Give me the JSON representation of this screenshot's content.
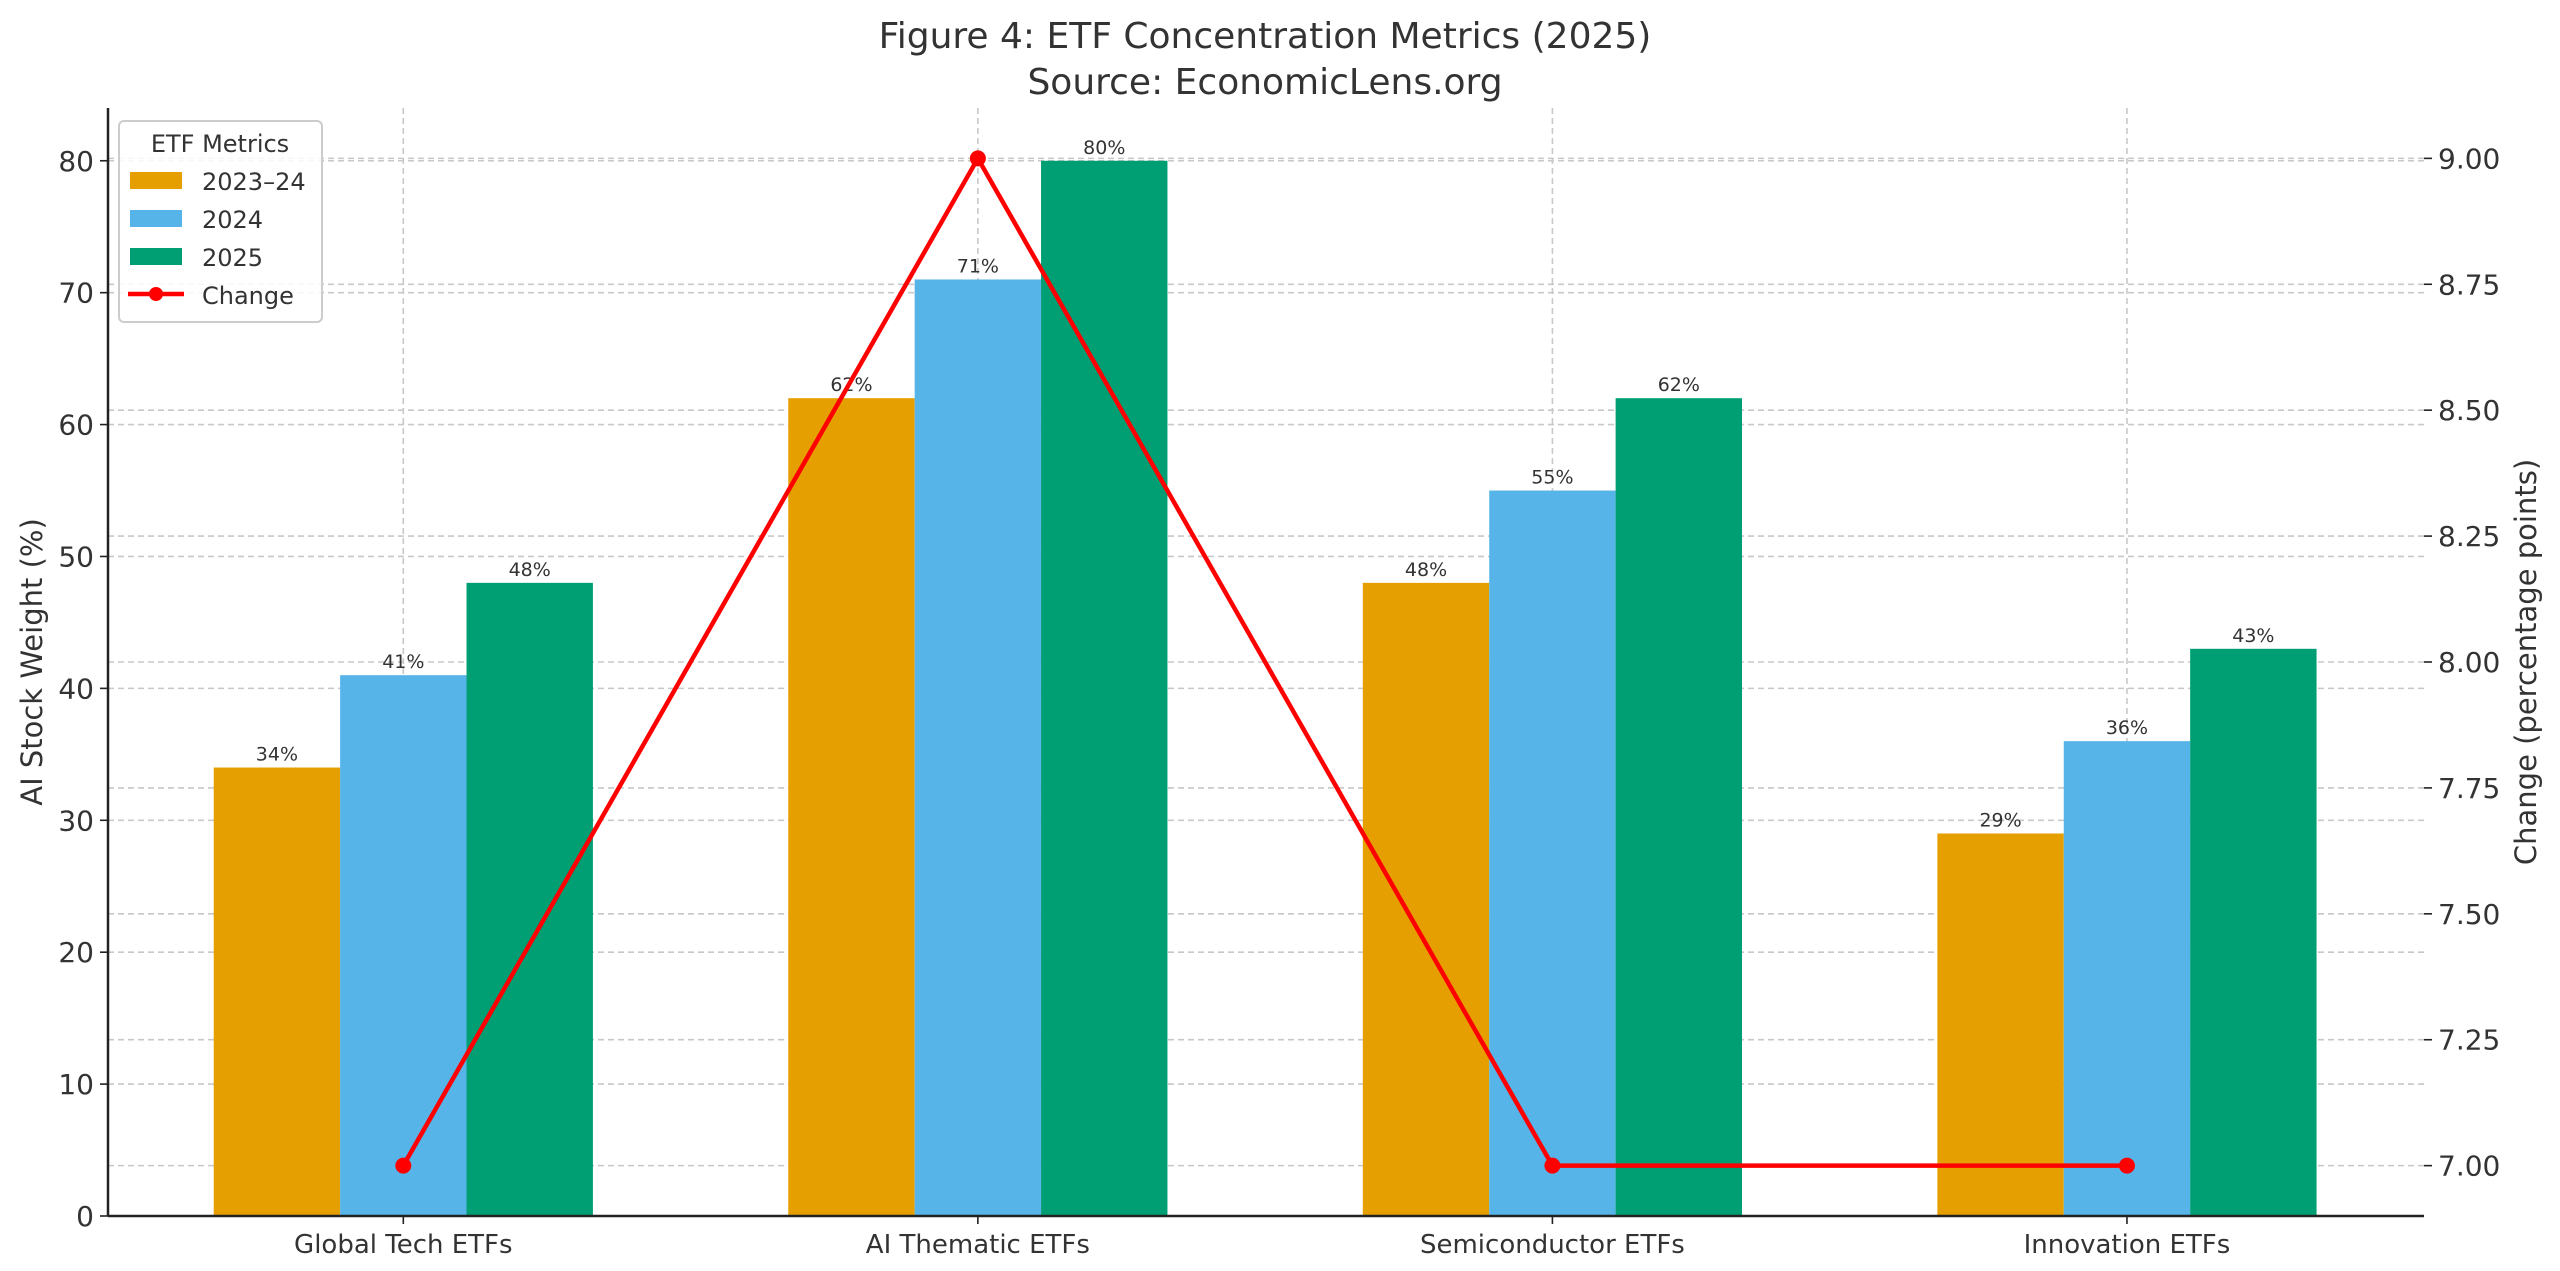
{
  "chart_data": {
    "type": "bar",
    "title": "Figure 4: ETF Concentration Metrics (2025)",
    "subtitle": "Source: EconomicLens.org",
    "xlabel": "",
    "ylabel": "AI Stock Weight (%)",
    "y2label": "Change (percentage points)",
    "categories": [
      "Global Tech ETFs",
      "AI Thematic ETFs",
      "Semiconductor ETFs",
      "Innovation ETFs"
    ],
    "series": [
      {
        "name": "2023–24",
        "type": "bar",
        "axis": "left",
        "color": "#E69F00",
        "values": [
          34,
          62,
          48,
          29
        ],
        "labels": [
          "34%",
          "62%",
          "48%",
          "29%"
        ]
      },
      {
        "name": "2024",
        "type": "bar",
        "axis": "left",
        "color": "#56B4E9",
        "values": [
          41,
          71,
          55,
          36
        ],
        "labels": [
          "41%",
          "71%",
          "55%",
          "36%"
        ]
      },
      {
        "name": "2025",
        "type": "bar",
        "axis": "left",
        "color": "#009E73",
        "values": [
          48,
          80,
          62,
          43
        ],
        "labels": [
          "48%",
          "80%",
          "62%",
          "43%"
        ]
      },
      {
        "name": "Change",
        "type": "line",
        "axis": "right",
        "color": "#FF0000",
        "values": [
          7,
          9,
          7,
          7
        ]
      }
    ],
    "ylim": [
      0,
      84
    ],
    "y2lim": [
      6.9,
      9.1
    ],
    "yticks": [
      "0",
      "10",
      "20",
      "30",
      "40",
      "50",
      "60",
      "70",
      "80"
    ],
    "y2ticks": [
      "7.00",
      "7.25",
      "7.50",
      "7.75",
      "8.00",
      "8.25",
      "8.50",
      "8.75",
      "9.00"
    ],
    "grid": true,
    "legend": {
      "title": "ETF Metrics",
      "placement": "top-left"
    }
  }
}
